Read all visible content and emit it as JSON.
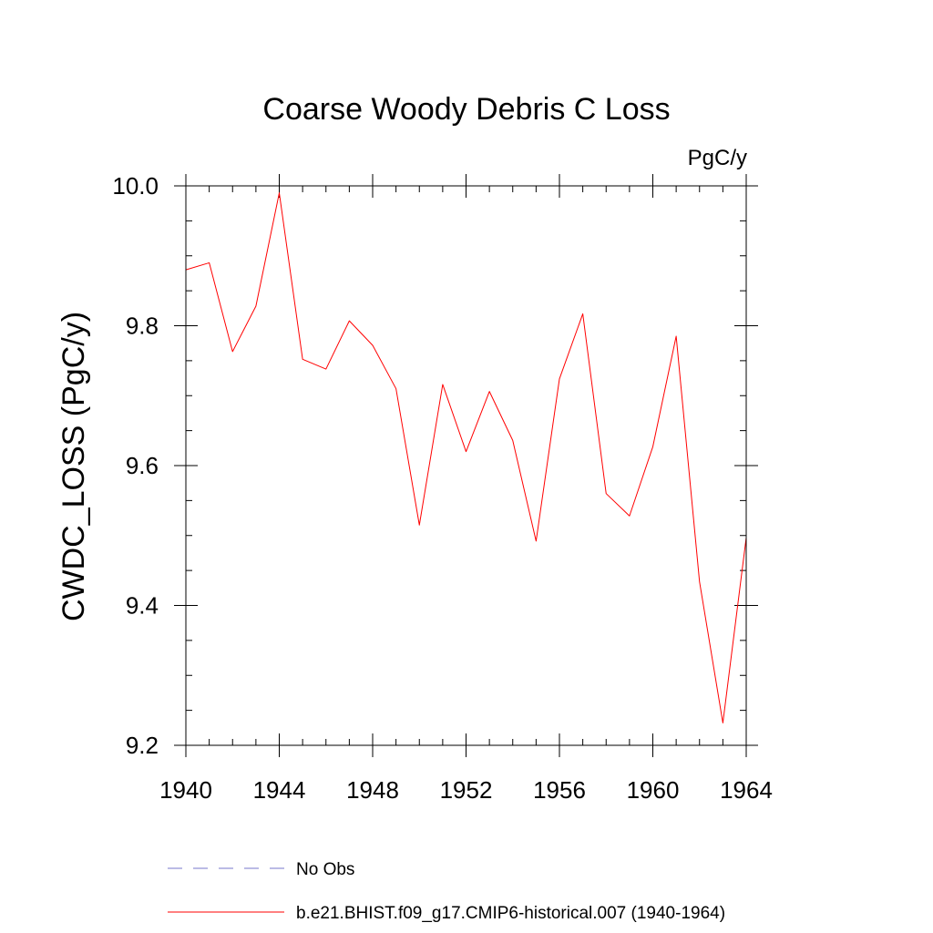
{
  "chart_data": {
    "type": "line",
    "title": "Coarse Woody Debris C Loss",
    "units": "PgC/y",
    "xlabel": "",
    "ylabel": "CWDC_LOSS  (PgC/y)",
    "xlim": [
      1940,
      1964
    ],
    "ylim": [
      9.2,
      10.0
    ],
    "x_major_ticks": [
      1940,
      1944,
      1948,
      1952,
      1956,
      1960,
      1964
    ],
    "x_tick_labels": [
      "1940",
      "1944",
      "1948",
      "1952",
      "1956",
      "1960",
      "1964"
    ],
    "x_minor_step": 1,
    "y_major_ticks": [
      9.2,
      9.4,
      9.6,
      9.8,
      10.0
    ],
    "y_tick_labels": [
      "9.2",
      "9.4",
      "9.6",
      "9.8",
      "10.0"
    ],
    "y_minor_step": 0.05,
    "grid": false,
    "legend_position": "bottom",
    "series": [
      {
        "name": "b.e21.BHIST.f09_g17.CMIP6-historical.007 (1940-1964)",
        "color": "#ff0000",
        "dash": "solid",
        "x": [
          1940,
          1941,
          1942,
          1943,
          1944,
          1945,
          1946,
          1947,
          1948,
          1949,
          1950,
          1951,
          1952,
          1953,
          1954,
          1955,
          1956,
          1957,
          1958,
          1959,
          1960,
          1961,
          1962,
          1963,
          1964
        ],
        "values": [
          9.88,
          9.89,
          9.763,
          9.828,
          9.99,
          9.752,
          9.738,
          9.807,
          9.772,
          9.71,
          9.515,
          9.716,
          9.62,
          9.706,
          9.636,
          9.492,
          9.724,
          9.817,
          9.56,
          9.528,
          9.627,
          9.785,
          9.434,
          9.232,
          9.497
        ]
      }
    ],
    "legend_entries": [
      {
        "label": "No Obs",
        "color": "#7777cc",
        "dash": "dashed"
      },
      {
        "label": "b.e21.BHIST.f09_g17.CMIP6-historical.007 (1940-1964)",
        "color": "#ff0000",
        "dash": "solid"
      }
    ]
  }
}
